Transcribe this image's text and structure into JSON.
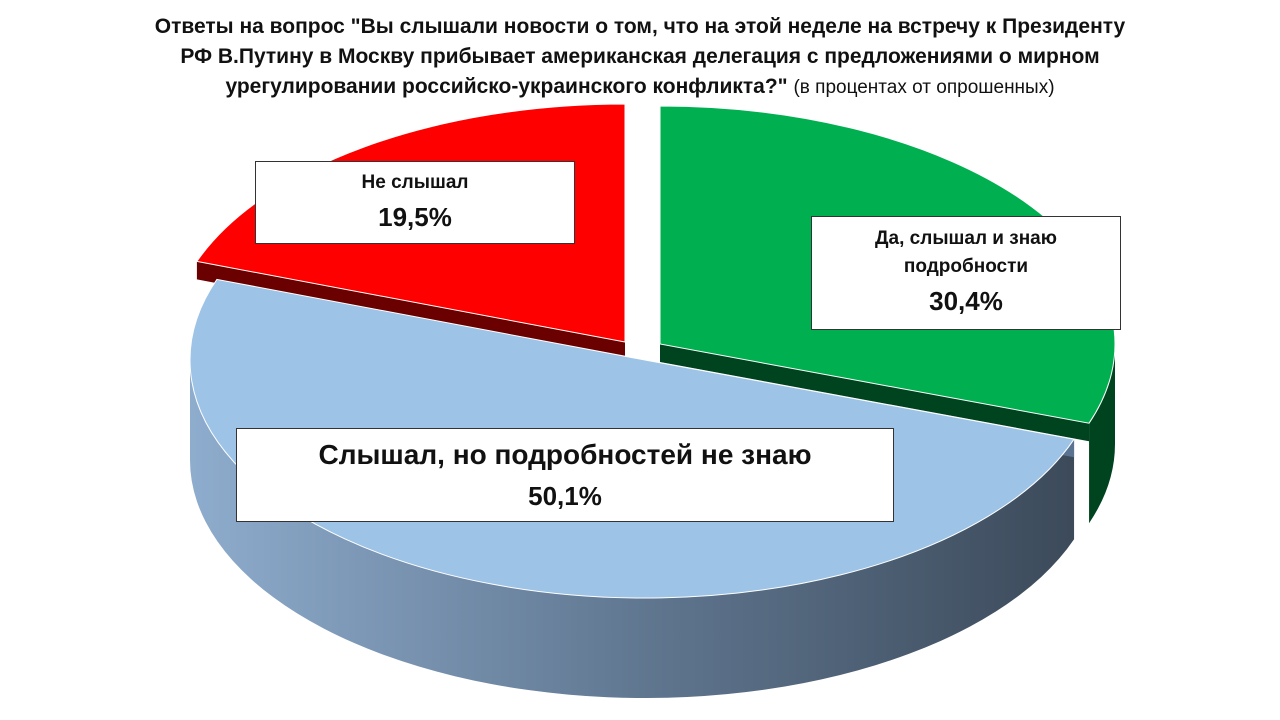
{
  "chart_data": {
    "type": "pie",
    "title": "Ответы на вопрос \"Вы слышали новости о том, что на этой неделе на встречу к Президенту РФ В.Путину в Москву прибывает американская делегация с предложениями о мирном урегулировании российско-украинского конфликта?\"",
    "subtitle": "(в процентах от опрошенных)",
    "slices": [
      {
        "label": "Да, слышал и знаю подробности",
        "value": 30.4,
        "value_label": "30,4%",
        "color": "#00b050",
        "side_color": "#00441f"
      },
      {
        "label": "Слышал, но подробностей не знаю",
        "value": 50.1,
        "value_label": "50,1%",
        "color": "#9dc3e6",
        "side_color": "#5a7390"
      },
      {
        "label": "Не слышал",
        "value": 19.5,
        "value_label": "19,5%",
        "color": "#ff0000",
        "side_color": "#6b0000"
      }
    ],
    "legend": "none",
    "style": "3d-exploded"
  }
}
